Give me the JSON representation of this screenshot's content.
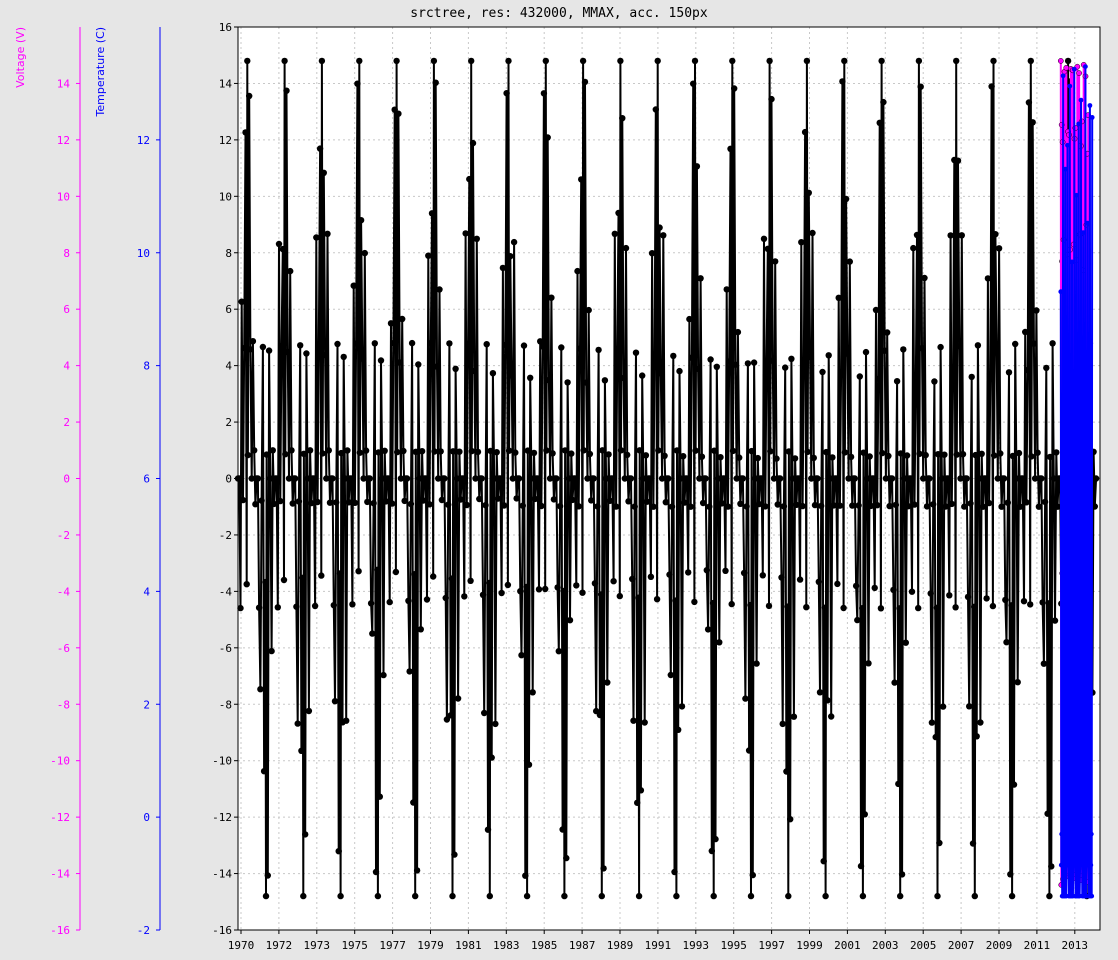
{
  "title": "srctree, res: 432000, MMAX, acc. 150px",
  "colors": {
    "background": "#e6e6e6",
    "plot_background": "#ffffff",
    "grid": "#c8c8c8",
    "black_series": "#000000",
    "voltage": "#ff00ff",
    "temperature": "#0000ff"
  },
  "chart_data": {
    "type": "line",
    "title": "srctree, res: 432000, MMAX, acc. 150px",
    "grid": true,
    "axes": {
      "x": {
        "ticks": [
          "1970",
          "1972",
          "1973",
          "1975",
          "1977",
          "1979",
          "1981",
          "1983",
          "1985",
          "1987",
          "1989",
          "1991",
          "1993",
          "1995",
          "1997",
          "1999",
          "2001",
          "2003",
          "2005",
          "2007",
          "2009",
          "2011",
          "2013"
        ],
        "range": [
          1970,
          2014
        ]
      },
      "y_main": {
        "range": [
          -16,
          16
        ],
        "ticks": [
          -16,
          -14,
          -12,
          -10,
          -8,
          -6,
          -4,
          -2,
          0,
          2,
          4,
          6,
          8,
          10,
          12,
          14,
          16
        ]
      },
      "y_voltage": {
        "label": "Voltage (V)",
        "range": [
          -16,
          16
        ],
        "ticks": [
          -16,
          -14,
          -12,
          -10,
          -8,
          -6,
          -4,
          -2,
          0,
          2,
          4,
          6,
          8,
          10,
          12,
          14
        ]
      },
      "y_temperature": {
        "label": "Temperature (C)",
        "range": [
          -2,
          14
        ],
        "ticks": [
          -2,
          0,
          2,
          4,
          6,
          8,
          10,
          12
        ]
      }
    },
    "series": [
      {
        "color": "black",
        "axis": "y_main",
        "x_range": [
          1970,
          2013.8
        ],
        "cycles": 23,
        "amplitude": 14.8,
        "cluster_levels": [
          4.8,
          1.0,
          0.0,
          -1.0,
          -4.6
        ]
      },
      {
        "color": "magenta",
        "axis": "y_voltage",
        "x_range": [
          2012.0,
          2013.4
        ],
        "min": -14.4,
        "max": 14.8
      },
      {
        "color": "blue",
        "axis": "y_temperature",
        "x_range": [
          2012.0,
          2013.6
        ],
        "min": -1.4,
        "max": 13.3
      }
    ]
  }
}
